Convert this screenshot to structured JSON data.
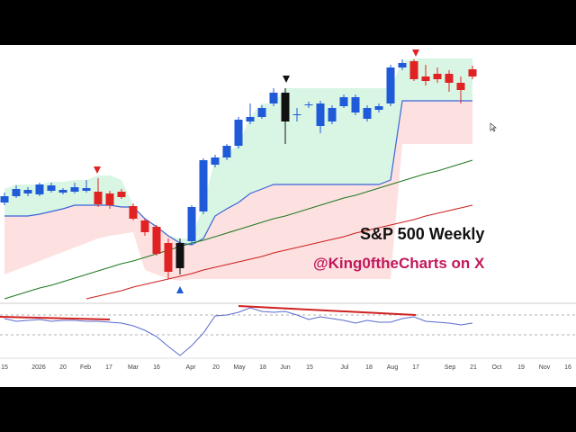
{
  "chart_data": {
    "type": "candlestick",
    "title": "S&P 500 Weekly",
    "subtitle": "@King0ftheCharts on X",
    "ylim": [
      0,
      285
    ],
    "open": [
      110,
      117,
      120,
      119,
      123,
      121,
      122,
      123,
      122,
      120,
      122,
      106,
      90,
      83,
      65,
      37,
      67,
      100,
      152,
      160,
      173,
      200,
      205,
      220,
      232,
      207,
      218,
      195,
      200,
      217,
      210,
      203,
      213,
      220,
      260,
      267,
      250,
      253,
      253,
      243,
      258
    ],
    "high": [
      121,
      129,
      127,
      132,
      132,
      126,
      132,
      135,
      137,
      123,
      125,
      109,
      92,
      85,
      70,
      70,
      107,
      159,
      163,
      175,
      205,
      220,
      218,
      237,
      237,
      215,
      222,
      223,
      218,
      230,
      230,
      218,
      220,
      263,
      269,
      269,
      263,
      260,
      257,
      250,
      262
    ],
    "low": [
      107,
      115,
      117,
      117,
      121,
      119,
      120,
      121,
      105,
      103,
      114,
      90,
      73,
      51,
      25,
      30,
      63,
      97,
      149,
      157,
      170,
      197,
      203,
      217,
      175,
      200,
      215,
      187,
      197,
      215,
      207,
      200,
      210,
      217,
      257,
      245,
      240,
      243,
      233,
      220,
      247
    ],
    "close": [
      117,
      125,
      124,
      130,
      129,
      124,
      127,
      126,
      108,
      107,
      116,
      92,
      77,
      53,
      33,
      65,
      105,
      157,
      160,
      173,
      202,
      205,
      215,
      232,
      200,
      208,
      219,
      220,
      215,
      227,
      227,
      215,
      217,
      260,
      265,
      247,
      245,
      247,
      243,
      235,
      250
    ],
    "candle_colors": [
      "#1f5ad8",
      "#1f5ad8",
      "#1f5ad8",
      "#1f5ad8",
      "#1f5ad8",
      "#1f5ad8",
      "#1f5ad8",
      "#1f5ad8",
      "#e02222",
      "#e02222",
      "#e02222",
      "#e02222",
      "#e02222",
      "#e02222",
      "#e02222",
      "#111111",
      "#1f5ad8",
      "#1f5ad8",
      "#1f5ad8",
      "#1f5ad8",
      "#1f5ad8",
      "#1f5ad8",
      "#1f5ad8",
      "#1f5ad8",
      "#111111",
      "#1f5ad8",
      "#1f5ad8",
      "#1f5ad8",
      "#1f5ad8",
      "#1f5ad8",
      "#1f5ad8",
      "#1f5ad8",
      "#1f5ad8",
      "#1f5ad8",
      "#1f5ad8",
      "#e02222",
      "#e02222",
      "#e02222",
      "#e02222",
      "#e02222",
      "#e02222"
    ],
    "bands": {
      "upper": [
        125,
        130,
        130,
        130,
        133,
        133,
        135,
        135,
        140,
        140,
        135,
        107,
        90,
        85,
        73,
        70,
        70,
        107,
        159,
        163,
        175,
        205,
        220,
        220,
        237,
        237,
        237,
        237,
        237,
        237,
        237,
        237,
        237,
        237,
        267,
        270,
        270,
        270,
        270,
        270,
        270
      ],
      "middle": [
        95,
        95,
        95,
        97,
        100,
        103,
        107,
        107,
        107,
        107,
        105,
        105,
        92,
        83,
        73,
        65,
        63,
        70,
        95,
        103,
        110,
        120,
        125,
        130,
        130,
        130,
        130,
        130,
        130,
        130,
        130,
        130,
        130,
        135,
        223,
        223,
        223,
        223,
        223,
        223,
        223
      ],
      "lower": [
        30,
        35,
        40,
        45,
        50,
        55,
        60,
        65,
        70,
        73,
        75,
        77,
        35,
        30,
        25,
        23,
        25,
        25,
        25,
        25,
        25,
        25,
        25,
        25,
        25,
        25,
        25,
        25,
        25,
        25,
        25,
        25,
        25,
        25,
        175,
        175,
        175,
        175,
        175,
        175,
        175
      ],
      "upper_fill": "#d8f6e3",
      "lower_fill": "#fde1e1",
      "middle_color": "#3a64d8"
    },
    "series": [
      {
        "color": "#1f7a1f",
        "values": [
          3,
          7,
          11,
          15,
          18,
          22,
          26,
          30,
          34,
          38,
          42,
          45,
          49,
          53,
          57,
          61,
          65,
          68,
          72,
          76,
          80,
          84,
          88,
          92,
          95,
          99,
          103,
          107,
          111,
          115,
          118,
          122,
          126,
          130,
          134,
          138,
          142,
          145,
          149,
          153,
          157
        ]
      },
      {
        "color": "#cc1f1f",
        "values": [
          null,
          null,
          null,
          null,
          null,
          null,
          null,
          3,
          6,
          9,
          12,
          16,
          19,
          22,
          25,
          28,
          31,
          35,
          38,
          41,
          44,
          47,
          50,
          54,
          57,
          60,
          63,
          66,
          69,
          72,
          76,
          79,
          82,
          85,
          88,
          91,
          95,
          98,
          101,
          104,
          107
        ]
      }
    ],
    "indicator": {
      "color": "#5a6acf",
      "ylim": [
        0,
        60
      ],
      "values": [
        43,
        40,
        41,
        42,
        40,
        41,
        41,
        40,
        40,
        39,
        38,
        35,
        30,
        23,
        12,
        2,
        13,
        27,
        46,
        47,
        50,
        55,
        51,
        50,
        51,
        47,
        42,
        45,
        43,
        41,
        38,
        41,
        39,
        39,
        43,
        45,
        40,
        39,
        38,
        36,
        38
      ]
    },
    "x_labels": [
      "15",
      "2026",
      "20",
      "Feb",
      "17",
      "Mar",
      "16",
      "Apr",
      "20",
      "May",
      "18",
      "Jun",
      "15",
      "Jul",
      "18",
      "Aug",
      "17",
      "Sep",
      "21",
      "Oct",
      "19",
      "Nov",
      "16"
    ]
  }
}
